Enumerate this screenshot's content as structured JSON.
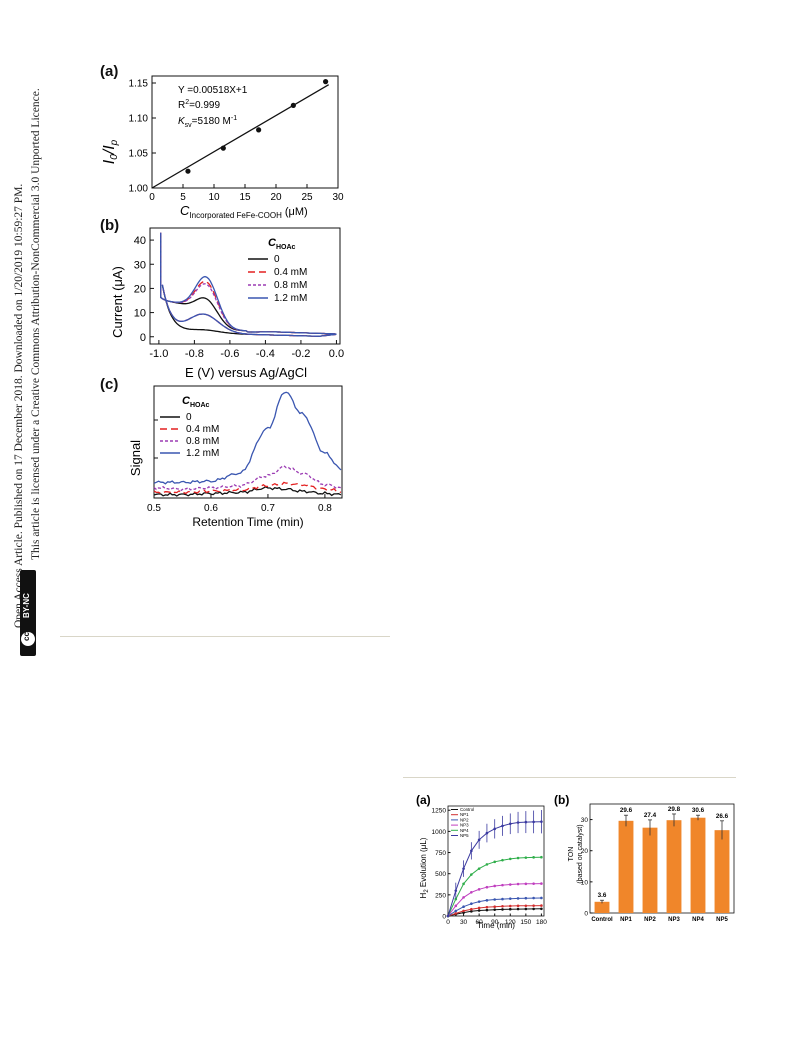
{
  "license": {
    "line1": "Open Access Article. Published on 17 December 2018. Downloaded on 1/20/2019 10:59:27 PM.",
    "line2": "This article is licensed under a Creative Commons Attribution-NonCommercial 3.0 Unported Licence.",
    "badge_cc": "cc",
    "badge_by": "BY-NC"
  },
  "figure_left": {
    "panel_a": {
      "label": "(a)",
      "equation": "Y =0.00518X+1",
      "r2_prefix": "R",
      "r2_sup": "2",
      "r2_value": "=0.999",
      "ksv_prefix": "K",
      "ksv_sub": "sv",
      "ksv_value": "=5180 M",
      "ksv_sup": "-1",
      "ylabel_a": "I",
      "ylabel_a_sub": "0",
      "ylabel_sep": "/",
      "ylabel_b": "I",
      "ylabel_b_sub": "p",
      "xlabel_main": "C",
      "xlabel_sub": "Incorporated FeFe-COOH",
      "xlabel_unit": "(μM)",
      "yticks": [
        "1.00",
        "1.05",
        "1.10",
        "1.15"
      ],
      "xticks": [
        "0",
        "5",
        "10",
        "15",
        "20",
        "25",
        "30"
      ]
    },
    "panel_b": {
      "label": "(b)",
      "legend_title": "C",
      "legend_title_sub": "HOAc",
      "legend": [
        "0",
        "0.4 mM",
        "0.8 mM",
        "1.2 mM"
      ],
      "ylabel": "Current (μA)",
      "xlabel": "E (V) versus Ag/AgCl",
      "yticks": [
        "0",
        "10",
        "20",
        "30",
        "40"
      ],
      "xticks": [
        "-1.0",
        "-0.8",
        "-0.6",
        "-0.4",
        "-0.2",
        "0.0"
      ]
    },
    "panel_c": {
      "label": "(c)",
      "legend_title": "C",
      "legend_title_sub": "HOAc",
      "legend": [
        "0",
        "0.4 mM",
        "0.8 mM",
        "1.2 mM"
      ],
      "ylabel": "Signal",
      "xlabel": "Retention Time (min)",
      "xticks": [
        "0.5",
        "0.6",
        "0.7",
        "0.8"
      ]
    },
    "series_colors": [
      "#111111",
      "#e32020",
      "#9b3bb3",
      "#3a56b0"
    ]
  },
  "figure_right": {
    "panel_a": {
      "label": "(a)",
      "legend": [
        "Control",
        "NP1",
        "NP2",
        "NP3",
        "NP4",
        "NP5"
      ],
      "ylabel": "H",
      "ylabel_sub": "2",
      "ylabel_rest": " Evolution (μL)",
      "xlabel": "Time (min)",
      "yticks": [
        "0",
        "250",
        "500",
        "750",
        "1000",
        "1250"
      ],
      "xticks": [
        "0",
        "30",
        "60",
        "90",
        "120",
        "150",
        "180"
      ],
      "colors": [
        "#111111",
        "#d12f2f",
        "#3a56b0",
        "#c03fbf",
        "#2fae4a",
        "#3b3aa0"
      ]
    },
    "panel_b": {
      "label": "(b)",
      "ylabel_line1": "TON",
      "ylabel_line2": "(based on catalyst)",
      "yticks": [
        "0",
        "10",
        "20",
        "30"
      ],
      "categories": [
        "Control",
        "NP1",
        "NP2",
        "NP3",
        "NP4",
        "NP5"
      ],
      "value_labels": [
        "3.6",
        "29.6",
        "27.4",
        "29.8",
        "30.6",
        "26.6"
      ],
      "bar_color": "#f0862a"
    }
  },
  "chart_data": [
    {
      "type": "scatter",
      "title": "(a)",
      "xlabel": "C Incorporated FeFe-COOH (μM)",
      "ylabel": "I0/Ip",
      "xlim": [
        0,
        30
      ],
      "ylim": [
        1.0,
        1.16
      ],
      "series": [
        {
          "x": [
            5.8,
            11.5,
            17.2,
            22.8,
            28.0
          ],
          "y": [
            1.024,
            1.057,
            1.083,
            1.118,
            1.152
          ]
        }
      ],
      "fit": {
        "slope": 0.00518,
        "intercept": 1,
        "r2": 0.999
      }
    },
    {
      "type": "line",
      "title": "(b)",
      "xlabel": "E (V) versus Ag/AgCl",
      "ylabel": "Current (μA)",
      "xlim": [
        -1.05,
        0.02
      ],
      "ylim": [
        -3,
        45
      ],
      "series": [
        {
          "name": "0",
          "peak_x": -0.73,
          "peak_y": 18
        },
        {
          "name": "0.4 mM",
          "peak_x": -0.73,
          "peak_y": 25
        },
        {
          "name": "0.8 mM",
          "peak_x": -0.73,
          "peak_y": 24
        },
        {
          "name": "1.2 mM",
          "peak_x": -0.73,
          "peak_y": 27
        }
      ]
    },
    {
      "type": "line",
      "title": "(c)",
      "xlabel": "Retention Time (min)",
      "ylabel": "Signal",
      "xlim": [
        0.5,
        0.83
      ],
      "series": [
        {
          "name": "0",
          "x": [
            0.5,
            0.55,
            0.6,
            0.65,
            0.7,
            0.73,
            0.76,
            0.8,
            0.83
          ],
          "y": [
            0.03,
            0.03,
            0.04,
            0.05,
            0.09,
            0.08,
            0.06,
            0.04,
            0.03
          ]
        },
        {
          "name": "0.4 mM",
          "x": [
            0.5,
            0.55,
            0.6,
            0.65,
            0.7,
            0.73,
            0.76,
            0.8,
            0.83
          ],
          "y": [
            0.05,
            0.05,
            0.06,
            0.07,
            0.11,
            0.13,
            0.12,
            0.08,
            0.06
          ]
        },
        {
          "name": "0.8 mM",
          "x": [
            0.5,
            0.55,
            0.6,
            0.65,
            0.7,
            0.73,
            0.76,
            0.8,
            0.83
          ],
          "y": [
            0.09,
            0.08,
            0.09,
            0.11,
            0.2,
            0.28,
            0.22,
            0.12,
            0.09
          ]
        },
        {
          "name": "1.2 mM",
          "x": [
            0.5,
            0.55,
            0.6,
            0.65,
            0.7,
            0.73,
            0.76,
            0.8,
            0.83
          ],
          "y": [
            0.14,
            0.14,
            0.15,
            0.22,
            0.62,
            0.95,
            0.75,
            0.4,
            0.25
          ]
        }
      ]
    },
    {
      "type": "line",
      "title": "(a)",
      "xlabel": "Time (min)",
      "ylabel": "H2 Evolution (μL)",
      "xlim": [
        0,
        185
      ],
      "ylim": [
        0,
        1300
      ],
      "x": [
        0,
        15,
        30,
        45,
        60,
        75,
        90,
        105,
        120,
        135,
        150,
        165,
        180
      ],
      "series": [
        {
          "name": "Control",
          "values": [
            0,
            20,
            40,
            55,
            65,
            70,
            75,
            78,
            80,
            82,
            83,
            84,
            85
          ]
        },
        {
          "name": "NP1",
          "values": [
            0,
            30,
            60,
            80,
            95,
            105,
            110,
            115,
            118,
            120,
            121,
            122,
            123
          ]
        },
        {
          "name": "NP2",
          "values": [
            0,
            60,
            110,
            145,
            170,
            185,
            195,
            200,
            205,
            208,
            210,
            212,
            213
          ]
        },
        {
          "name": "NP3",
          "values": [
            0,
            120,
            220,
            280,
            315,
            340,
            355,
            365,
            372,
            378,
            380,
            382,
            383
          ]
        },
        {
          "name": "NP4",
          "values": [
            0,
            200,
            380,
            490,
            560,
            610,
            640,
            660,
            675,
            685,
            690,
            693,
            695
          ]
        },
        {
          "name": "NP5",
          "values": [
            0,
            300,
            560,
            770,
            900,
            980,
            1030,
            1065,
            1090,
            1105,
            1110,
            1112,
            1115
          ]
        }
      ]
    },
    {
      "type": "bar",
      "title": "(b)",
      "ylabel": "TON (based on catalyst)",
      "ylim": [
        0,
        35
      ],
      "categories": [
        "Control",
        "NP1",
        "NP2",
        "NP3",
        "NP4",
        "NP5"
      ],
      "values": [
        3.6,
        29.6,
        27.4,
        29.8,
        30.6,
        26.6
      ],
      "errors": [
        0.5,
        1.8,
        2.5,
        2.0,
        0.8,
        3.0
      ]
    }
  ]
}
